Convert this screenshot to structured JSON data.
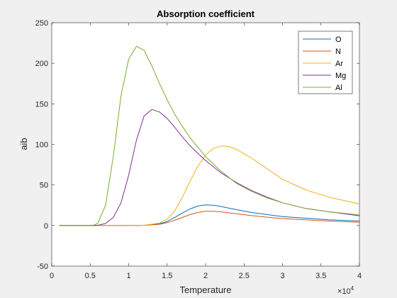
{
  "chart_data": {
    "type": "line",
    "title": "Absorption coefficient",
    "xlabel": "Temperature",
    "ylabel": "aib",
    "x_exponent_label": "×10",
    "x_exponent_power": "4",
    "xlim": [
      0,
      40000
    ],
    "ylim": [
      -50,
      250
    ],
    "x_ticks": [
      0,
      5000,
      10000,
      15000,
      20000,
      25000,
      30000,
      35000,
      40000
    ],
    "x_tick_labels": [
      "0",
      "0.5",
      "1",
      "1.5",
      "2",
      "2.5",
      "3",
      "3.5",
      "4"
    ],
    "y_ticks": [
      -50,
      0,
      50,
      100,
      150,
      200,
      250
    ],
    "y_tick_labels": [
      "-50",
      "0",
      "50",
      "100",
      "150",
      "200",
      "250"
    ],
    "grid": false,
    "legend_position": "top-right",
    "series": [
      {
        "name": "O",
        "color": "#0072BD",
        "x": [
          1000,
          8000,
          10000,
          12000,
          14000,
          15000,
          16000,
          17000,
          18000,
          19000,
          20000,
          21000,
          22000,
          24000,
          26000,
          28000,
          30000,
          33000,
          36000,
          40000
        ],
        "y": [
          0,
          0,
          0,
          0.3,
          2,
          5,
          10,
          15.5,
          20.5,
          24,
          25.5,
          25,
          23.5,
          19.5,
          16,
          13.5,
          11,
          9,
          7,
          5.5
        ]
      },
      {
        "name": "N",
        "color": "#D95319",
        "x": [
          1000,
          8000,
          10000,
          12000,
          14000,
          15000,
          16000,
          17000,
          18000,
          19000,
          20000,
          21000,
          22000,
          24000,
          26000,
          28000,
          30000,
          33000,
          36000,
          40000
        ],
        "y": [
          0,
          0,
          0,
          0.2,
          1.5,
          3.5,
          6.5,
          10,
          13.5,
          16,
          17.5,
          17.5,
          16.8,
          14.5,
          12.2,
          10.3,
          8.5,
          7,
          5.5,
          4
        ]
      },
      {
        "name": "Ar",
        "color": "#EDB120",
        "x": [
          1000,
          10000,
          12000,
          14000,
          15000,
          16000,
          17000,
          18000,
          19000,
          20000,
          21000,
          22000,
          23000,
          24000,
          26000,
          28000,
          30000,
          33000,
          36000,
          40000
        ],
        "y": [
          0,
          0,
          0.3,
          3,
          8,
          18,
          35,
          55,
          73,
          87,
          95,
          98,
          97.5,
          94,
          83,
          70,
          57,
          44,
          35,
          26.5
        ]
      },
      {
        "name": "Mg",
        "color": "#7E2F8E",
        "x": [
          1000,
          5000,
          6000,
          7000,
          8000,
          9000,
          10000,
          11000,
          12000,
          13000,
          14000,
          15000,
          16000,
          17000,
          18000,
          20000,
          22000,
          24000,
          26000,
          28000,
          30000,
          33000,
          36000,
          40000
        ],
        "y": [
          0,
          0,
          0.3,
          2.5,
          10,
          28,
          62,
          105,
          135,
          143,
          140,
          132,
          121,
          109,
          98,
          80,
          65,
          53,
          43,
          35,
          28,
          21,
          17,
          12
        ]
      },
      {
        "name": "Al",
        "color": "#77AC30",
        "x": [
          1000,
          4500,
          5500,
          6000,
          7000,
          8000,
          9000,
          10000,
          11000,
          12000,
          13000,
          14000,
          15000,
          16000,
          17000,
          18000,
          20000,
          22000,
          24000,
          26000,
          28000,
          30000,
          33000,
          36000,
          40000
        ],
        "y": [
          0,
          0,
          0.5,
          3,
          25,
          85,
          160,
          205,
          221,
          216,
          197,
          175,
          155,
          137,
          122,
          108,
          85,
          67,
          52,
          42,
          34,
          28,
          21,
          17,
          13
        ]
      }
    ]
  }
}
